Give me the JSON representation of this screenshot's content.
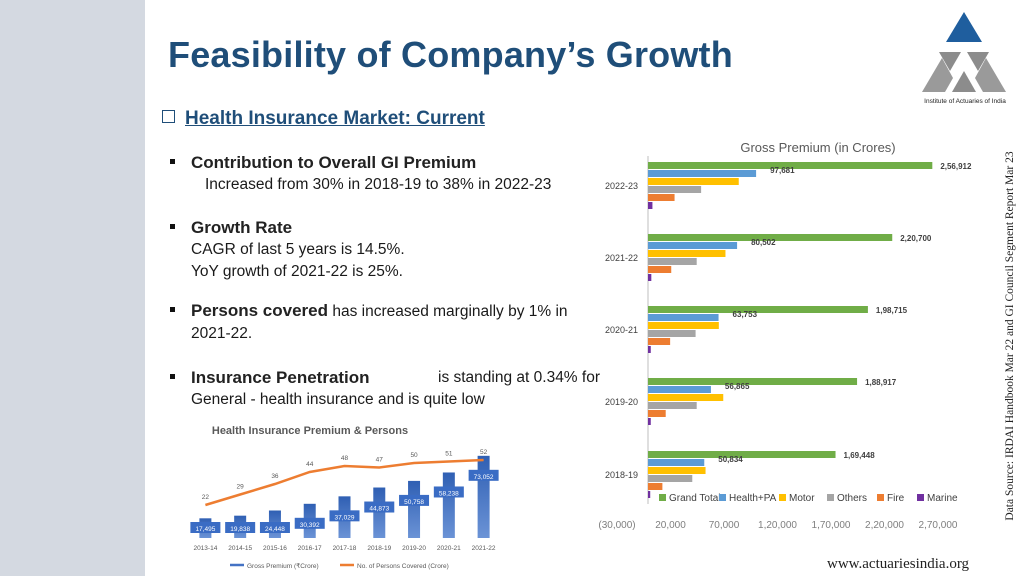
{
  "title": "Feasibility of Company’s Growth",
  "logo": {
    "caption": "Institute of Actuaries of India"
  },
  "section": {
    "label": "Health Insurance Market: Current"
  },
  "bullets": {
    "contribution": {
      "head": "Contribution to Overall GI Premium",
      "text": "Increased from 30% in 2018-19 to 38% in 2022-23"
    },
    "growth": {
      "head": "Growth Rate",
      "line1": "CAGR of last 5 years is 14.5%.",
      "line2": "YoY growth of 2021-22 is 25%."
    },
    "persons": {
      "head": "Persons covered",
      "text_a": "has increased marginally by 1% in",
      "text_b": "2021-22."
    },
    "penetration": {
      "head": "Insurance Penetration",
      "text_a": "is standing at 0.34% for",
      "text_b": "General - health insurance and is quite low"
    }
  },
  "source_note": "Data Source: IRDAI Handbook Mar 22 and GI Council Segment Report Mar 23",
  "website": "www.actuariesindia.org",
  "chart_data": [
    {
      "type": "bar",
      "title": "Health Insurance Premium & Persons",
      "categories": [
        "2013-14",
        "2014-15",
        "2015-16",
        "2016-17",
        "2017-18",
        "2018-19",
        "2019-20",
        "2020-21",
        "2021-22"
      ],
      "series": [
        {
          "name": "Gross Premium (₹Crore)",
          "type": "bar",
          "values": [
            17495,
            19838,
            24448,
            30392,
            37029,
            44873,
            50758,
            58238,
            73052
          ],
          "labels": [
            "17,495",
            "19,838",
            "24,448",
            "30,392",
            "37,029",
            "44,873",
            "50,758",
            "58,238",
            "73,052"
          ],
          "color": "#4472c4"
        },
        {
          "name": "No. of Persons Covered (Crore)",
          "type": "line",
          "values": [
            22,
            29,
            36,
            44,
            48,
            47,
            50,
            51,
            52
          ],
          "color": "#ed7d31"
        }
      ],
      "ylim_bars": [
        0,
        80000
      ],
      "ylim_line": [
        0,
        60
      ],
      "legend": "bottom",
      "grid": false
    },
    {
      "type": "bar",
      "orientation": "horizontal",
      "title": "Gross Premium (in Crores)",
      "categories": [
        "2022-23",
        "2021-22",
        "2020-21",
        "2019-20",
        "2018-19"
      ],
      "series": [
        {
          "name": "Grand Total",
          "color": "#70ad47",
          "values": [
            256912,
            220700,
            198715,
            188917,
            169448
          ],
          "labels": [
            "2,56,912",
            "2,20,700",
            "1,98,715",
            "1,88,917",
            "1,69,448"
          ]
        },
        {
          "name": "Health+PA",
          "color": "#5b9bd5",
          "values": [
            97681,
            80502,
            63753,
            56865,
            50834
          ],
          "labels": [
            "97,681",
            "80,502",
            "63,753",
            "56,865",
            "50,834"
          ]
        },
        {
          "name": "Motor",
          "color": "#ffc000",
          "values": [
            82000,
            70000,
            64000,
            68000,
            52000
          ]
        },
        {
          "name": "Others",
          "color": "#a5a5a5",
          "values": [
            48000,
            44000,
            43000,
            44000,
            40000
          ]
        },
        {
          "name": "Fire",
          "color": "#ed7d31",
          "values": [
            24000,
            21000,
            20000,
            16000,
            13000
          ]
        },
        {
          "name": "Marine",
          "color": "#7030a0",
          "values": [
            4000,
            3000,
            2500,
            2500,
            2000
          ]
        }
      ],
      "x_ticks": [
        "(30,000)",
        "20,000",
        "70,000",
        "1,20,000",
        "1,70,000",
        "2,20,000",
        "2,70,000"
      ],
      "x_tick_values": [
        -30000,
        20000,
        70000,
        120000,
        170000,
        220000,
        270000
      ],
      "xlim": [
        -30000,
        270000
      ],
      "legend": "bottom",
      "grid": false
    }
  ]
}
